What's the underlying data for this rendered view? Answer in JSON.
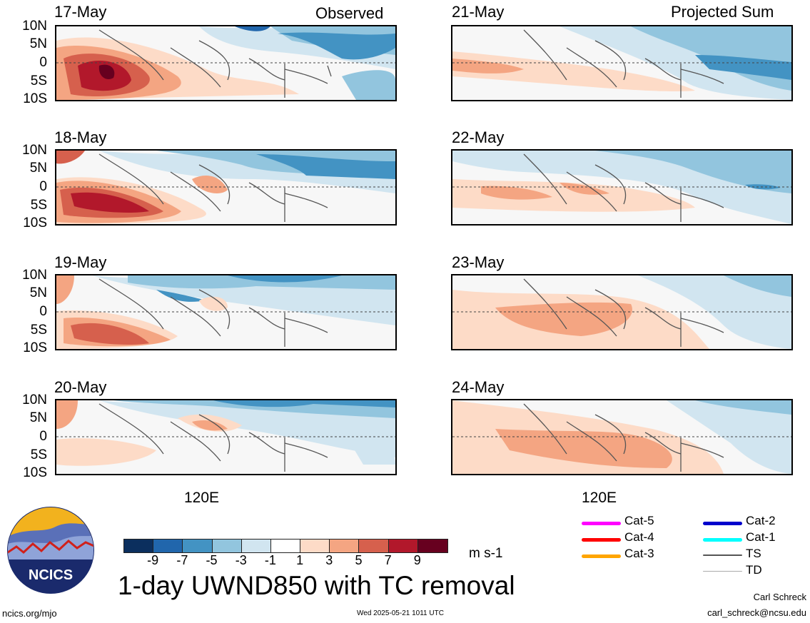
{
  "titles": {
    "observed": "Observed",
    "projected": "Projected Sum"
  },
  "lat_labels": [
    "10N",
    "5N",
    "0",
    "5S",
    "10S"
  ],
  "lon_label": "120E",
  "observed_dates": [
    "17-May",
    "18-May",
    "19-May",
    "20-May"
  ],
  "projected_dates": [
    "21-May",
    "22-May",
    "23-May",
    "24-May"
  ],
  "colorbar": {
    "labels": [
      "-9",
      "-7",
      "-5",
      "-3",
      "-1",
      "1",
      "3",
      "5",
      "7",
      "9"
    ],
    "units": "m s-1",
    "colors": [
      "#0b2f5e",
      "#2166ac",
      "#4393c3",
      "#92c5de",
      "#d1e5f0",
      "#ffffff",
      "#fddbc7",
      "#f4a582",
      "#d6604d",
      "#b2182b",
      "#67001f"
    ]
  },
  "main_title": "1-day UWND850 with TC removal",
  "logo_text": "NCICS",
  "footer": {
    "url": "ncics.org/mjo",
    "timestamp": "Wed 2025-05-21 1011 UTC",
    "author": "Carl Schreck",
    "email": "carl_schreck@ncsu.edu"
  },
  "tc_legend": [
    {
      "label": "Cat-5",
      "color": "#ff00ff"
    },
    {
      "label": "Cat-4",
      "color": "#ff0000"
    },
    {
      "label": "Cat-3",
      "color": "#ffa500"
    },
    {
      "label": "Cat-2",
      "color": "#0000cc"
    },
    {
      "label": "Cat-1",
      "color": "#00ffff"
    },
    {
      "label": "TS",
      "color": "#555555"
    },
    {
      "label": "TD",
      "color": "#aaaaaa"
    }
  ]
}
